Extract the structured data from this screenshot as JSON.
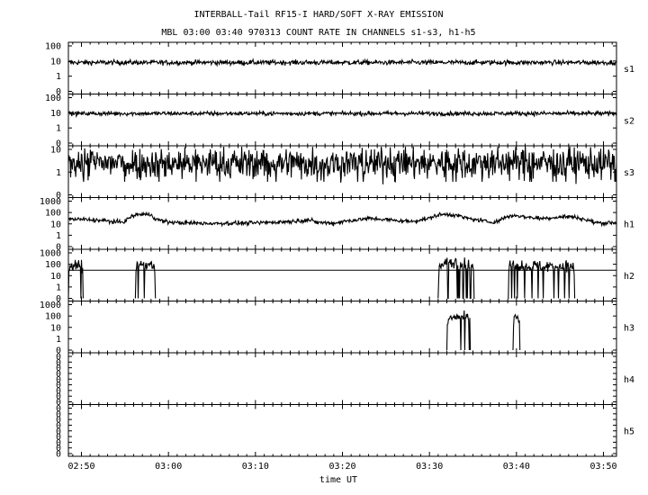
{
  "chart_data": {
    "type": "line",
    "title": "INTERBALL-Tail RF15-I HARD/SOFT X-RAY EMISSION",
    "subtitle": "MBL 03:00 03:40 970313  COUNT RATE IN CHANNELS s1-s3, h1-h5",
    "xlabel": "time UT",
    "x_ticks": [
      "02:50",
      "03:00",
      "03:10",
      "03:20",
      "03:30",
      "03:40",
      "03:50"
    ],
    "xlim_minutes": [
      -11.5,
      51.5
    ],
    "y_scale": "log",
    "panels": [
      {
        "name": "s1",
        "ytick_labels": [
          "100",
          "10",
          "1",
          "0"
        ],
        "baseline": 8,
        "segments": [
          {
            "x": [
              -11.5,
              51.5
            ],
            "y": [
              8,
              8
            ]
          }
        ]
      },
      {
        "name": "s2",
        "ytick_labels": [
          "100",
          "10",
          "1",
          "0"
        ],
        "baseline": 9,
        "segments": [
          {
            "x": [
              -11.5,
              51.5
            ],
            "y": [
              9,
              9
            ]
          }
        ]
      },
      {
        "name": "s3",
        "ytick_labels": [
          "10",
          "1",
          "0"
        ],
        "baseline": 2.5,
        "segments": [
          {
            "x": [
              -11.5,
              51.5
            ],
            "y": [
              2.5,
              2.5
            ]
          }
        ]
      },
      {
        "name": "h1",
        "ytick_labels": [
          "1000",
          "100",
          "10",
          "1",
          "0"
        ],
        "baseline": 12,
        "segments": [
          {
            "x": [
              -11.5,
              -10,
              -7,
              -6,
              -5,
              -3.5,
              -2,
              -1.5,
              0,
              2,
              5,
              10,
              14,
              16,
              17,
              19,
              20,
              22,
              23,
              24,
              26,
              28,
              30,
              31,
              32,
              33,
              34,
              35,
              37,
              38,
              39,
              40,
              41,
              42,
              43,
              44,
              45,
              46,
              47,
              48,
              49,
              50,
              51.5
            ],
            "y": [
              25,
              25,
              18,
              14,
              16,
              70,
              65,
              25,
              14,
              12,
              11,
              12,
              16,
              22,
              14,
              11,
              16,
              24,
              30,
              28,
              20,
              16,
              30,
              60,
              70,
              60,
              35,
              25,
              14,
              18,
              45,
              55,
              40,
              35,
              30,
              35,
              40,
              45,
              35,
              22,
              13,
              12,
              14
            ]
          }
        ]
      },
      {
        "name": "h2",
        "ytick_labels": [
          "1000",
          "100",
          "10",
          "1",
          "0"
        ],
        "reference_level": 30,
        "segments": [
          {
            "x": [
              -11.5,
              -11.3,
              -10.5,
              -10,
              -9.8
            ],
            "y": [
              0,
              70,
              65,
              75,
              0
            ]
          },
          {
            "x": [
              -3.8,
              -3.6,
              -3,
              -2,
              -1.7,
              -1.5
            ],
            "y": [
              0,
              80,
              120,
              100,
              70,
              0
            ]
          },
          {
            "x": [
              31,
              31.3,
              32,
              33,
              34,
              34.7,
              35,
              35.2
            ],
            "y": [
              0,
              70,
              130,
              160,
              110,
              60,
              70,
              0
            ]
          },
          {
            "x": [
              39,
              39.3,
              40,
              41,
              42,
              43,
              44,
              45,
              46,
              46.5,
              46.7
            ],
            "y": [
              0,
              110,
              90,
              70,
              75,
              65,
              70,
              60,
              70,
              55,
              0
            ]
          }
        ]
      },
      {
        "name": "h3",
        "ytick_labels": [
          "1000",
          "100",
          "10",
          "1",
          "0"
        ],
        "segments": [
          {
            "x": [
              32,
              32.3,
              33,
              34,
              34.5,
              34.7
            ],
            "y": [
              0,
              70,
              80,
              75,
              70,
              0
            ]
          },
          {
            "x": [
              39.6,
              39.8,
              40.2,
              40.4
            ],
            "y": [
              0,
              80,
              70,
              0
            ]
          }
        ]
      },
      {
        "name": "h4",
        "ytick_labels": [
          "0",
          "0",
          "0",
          "0",
          "0",
          "0",
          "0",
          "0",
          "0"
        ],
        "segments": []
      },
      {
        "name": "h5",
        "ytick_labels": [
          "0",
          "0",
          "0",
          "0",
          "0",
          "0",
          "0",
          "0",
          "0"
        ],
        "segments": []
      }
    ]
  }
}
